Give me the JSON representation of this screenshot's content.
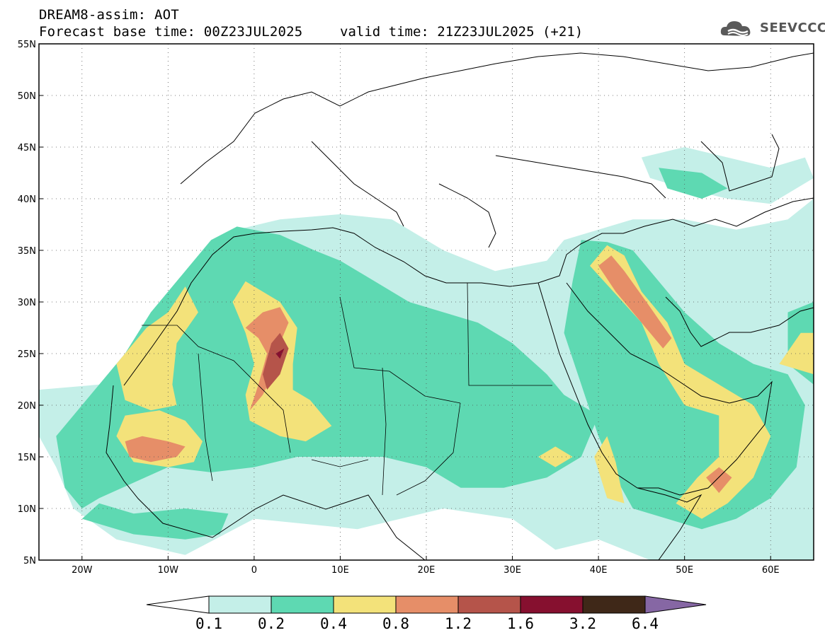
{
  "header": {
    "title": "DREAM8-assim: AOT",
    "base_time": "Forecast base time: 00Z23JUL2025",
    "valid_time": "valid time: 21Z23JUL2025 (+21)"
  },
  "logo": {
    "text": "SEEVCCC",
    "icon": "cloud-logo-icon"
  },
  "map": {
    "lon_range": [
      -25,
      65
    ],
    "lat_range": [
      5,
      55
    ],
    "lon_ticks": [
      {
        "value": -20,
        "label": "20W"
      },
      {
        "value": -10,
        "label": "10W"
      },
      {
        "value": 0,
        "label": "0"
      },
      {
        "value": 10,
        "label": "10E"
      },
      {
        "value": 20,
        "label": "20E"
      },
      {
        "value": 30,
        "label": "30E"
      },
      {
        "value": 40,
        "label": "40E"
      },
      {
        "value": 50,
        "label": "50E"
      },
      {
        "value": 60,
        "label": "60E"
      }
    ],
    "lat_ticks": [
      {
        "value": 5,
        "label": "5N"
      },
      {
        "value": 10,
        "label": "10N"
      },
      {
        "value": 15,
        "label": "15N"
      },
      {
        "value": 20,
        "label": "20N"
      },
      {
        "value": 25,
        "label": "25N"
      },
      {
        "value": 30,
        "label": "30N"
      },
      {
        "value": 35,
        "label": "35N"
      },
      {
        "value": 40,
        "label": "40N"
      },
      {
        "value": 45,
        "label": "45N"
      },
      {
        "value": 50,
        "label": "50N"
      },
      {
        "value": 55,
        "label": "55N"
      }
    ],
    "grid": "dotted",
    "colors": {
      "0.1": "#c4efe8",
      "0.2": "#5ed9b2",
      "0.4": "#f3e27a",
      "0.8": "#e68e68",
      "1.2": "#b5544a",
      "1.6": "#86102f",
      "3.2": "#3f2818",
      "6.4": "#8667a4"
    },
    "layers": [
      {
        "level": "0.1",
        "polys": [
          [
            [
              -25,
              21.5
            ],
            [
              -18,
              22
            ],
            [
              -14,
              26
            ],
            [
              -10,
              30
            ],
            [
              -6,
              35
            ],
            [
              -2,
              37
            ],
            [
              3,
              38
            ],
            [
              10,
              38.5
            ],
            [
              16,
              38
            ],
            [
              22,
              35
            ],
            [
              28,
              33
            ],
            [
              34,
              34
            ],
            [
              36,
              36
            ],
            [
              40,
              37
            ],
            [
              44,
              38
            ],
            [
              50,
              38
            ],
            [
              56,
              37
            ],
            [
              62,
              38
            ],
            [
              65,
              40
            ],
            [
              65,
              5
            ],
            [
              46,
              5
            ],
            [
              40,
              7
            ],
            [
              35,
              6
            ],
            [
              30,
              9
            ],
            [
              22,
              10
            ],
            [
              12,
              8
            ],
            [
              0,
              9
            ],
            [
              -8,
              5.5
            ],
            [
              -16,
              7
            ],
            [
              -21,
              10
            ],
            [
              -23,
              14
            ],
            [
              -25,
              17
            ]
          ],
          [
            [
              45,
              44
            ],
            [
              50,
              45
            ],
            [
              55,
              44
            ],
            [
              60,
              43
            ],
            [
              64,
              44
            ],
            [
              65,
              42
            ],
            [
              60,
              39.5
            ],
            [
              55,
              40
            ],
            [
              50,
              41
            ],
            [
              46,
              42
            ]
          ],
          [
            [
              63,
              37
            ],
            [
              65,
              37
            ],
            [
              65,
              35
            ],
            [
              63,
              35.5
            ]
          ]
        ]
      },
      {
        "level": "0.2",
        "polys": [
          [
            [
              -23,
              17
            ],
            [
              -19,
              21
            ],
            [
              -15,
              25
            ],
            [
              -12,
              29
            ],
            [
              -8,
              33
            ],
            [
              -5,
              36
            ],
            [
              -2,
              37.3
            ],
            [
              3,
              36.5
            ],
            [
              7,
              35
            ],
            [
              10,
              34
            ],
            [
              14,
              32
            ],
            [
              18,
              30
            ],
            [
              22,
              29
            ],
            [
              26,
              28
            ],
            [
              30,
              26
            ],
            [
              34,
              23
            ],
            [
              36,
              21
            ],
            [
              38,
              20
            ],
            [
              40,
              19
            ],
            [
              38,
              15
            ],
            [
              34,
              13
            ],
            [
              29,
              12
            ],
            [
              24,
              12
            ],
            [
              20,
              14
            ],
            [
              15,
              15
            ],
            [
              10,
              15
            ],
            [
              5,
              15
            ],
            [
              0,
              14
            ],
            [
              -5,
              13.5
            ],
            [
              -10,
              14
            ],
            [
              -14,
              12.5
            ],
            [
              -18,
              11
            ],
            [
              -20,
              10
            ],
            [
              -22,
              12
            ]
          ],
          [
            [
              38,
              36
            ],
            [
              41,
              35.8
            ],
            [
              44,
              35
            ],
            [
              47,
              32
            ],
            [
              50,
              29
            ],
            [
              54,
              26
            ],
            [
              58,
              24
            ],
            [
              62,
              23
            ],
            [
              64,
              20
            ],
            [
              63,
              14
            ],
            [
              60,
              11
            ],
            [
              56,
              9
            ],
            [
              52,
              8
            ],
            [
              48,
              9
            ],
            [
              44,
              10
            ],
            [
              42,
              13
            ],
            [
              40,
              17
            ],
            [
              38,
              22
            ],
            [
              36,
              27
            ],
            [
              37,
              32
            ]
          ],
          [
            [
              -20,
              9
            ],
            [
              -14,
              7.5
            ],
            [
              -8,
              7
            ],
            [
              -4,
              7.5
            ],
            [
              -3,
              9.5
            ],
            [
              -8,
              10
            ],
            [
              -14,
              9.5
            ],
            [
              -18,
              10.5
            ]
          ],
          [
            [
              47,
              43
            ],
            [
              52,
              42.5
            ],
            [
              55,
              41
            ],
            [
              52,
              40
            ],
            [
              48,
              41
            ]
          ],
          [
            [
              62,
              29
            ],
            [
              65,
              30
            ],
            [
              65,
              22
            ],
            [
              62,
              24
            ]
          ]
        ]
      },
      {
        "level": "0.4",
        "polys": [
          [
            [
              -16,
              24
            ],
            [
              -12.5,
              27.5
            ],
            [
              -10,
              29
            ],
            [
              -8,
              31.5
            ],
            [
              -6.5,
              29
            ],
            [
              -9,
              26
            ],
            [
              -9.5,
              22
            ],
            [
              -9,
              20
            ],
            [
              -12,
              19.5
            ],
            [
              -15,
              20.5
            ]
          ],
          [
            [
              -16,
              17
            ],
            [
              -15,
              19
            ],
            [
              -11,
              19.5
            ],
            [
              -8,
              18.5
            ],
            [
              -6,
              16.5
            ],
            [
              -7,
              14.5
            ],
            [
              -10,
              14
            ],
            [
              -14,
              14.5
            ]
          ],
          [
            [
              -1,
              32
            ],
            [
              3,
              30
            ],
            [
              5,
              27.5
            ],
            [
              4.5,
              24
            ],
            [
              4.5,
              21.5
            ],
            [
              6.5,
              20.5
            ],
            [
              9,
              18
            ],
            [
              6,
              16.5
            ],
            [
              3,
              17
            ],
            [
              -0.5,
              18.5
            ],
            [
              -1,
              21
            ],
            [
              0,
              24
            ],
            [
              -1,
              27
            ],
            [
              -2.5,
              30
            ]
          ],
          [
            [
              39,
              33.5
            ],
            [
              41,
              35.5
            ],
            [
              43,
              34.5
            ],
            [
              45,
              31
            ],
            [
              48,
              28
            ],
            [
              50,
              24
            ],
            [
              54,
              22
            ],
            [
              58,
              20
            ],
            [
              60,
              17
            ],
            [
              58,
              13
            ],
            [
              55,
              10.5
            ],
            [
              52,
              9
            ],
            [
              49,
              10.5
            ],
            [
              51.5,
              13
            ],
            [
              54,
              15
            ],
            [
              54,
              19
            ],
            [
              50,
              20
            ],
            [
              47,
              24
            ],
            [
              45,
              28
            ]
          ],
          [
            [
              39.5,
              15
            ],
            [
              41,
              17
            ],
            [
              42,
              14.5
            ],
            [
              43,
              10.5
            ],
            [
              41,
              11
            ]
          ],
          [
            [
              33,
              15
            ],
            [
              35,
              16
            ],
            [
              37,
              15
            ],
            [
              35,
              14
            ]
          ],
          [
            [
              61,
              24
            ],
            [
              63.5,
              27
            ],
            [
              65,
              27
            ],
            [
              65,
              23
            ]
          ]
        ]
      },
      {
        "level": "0.8",
        "polys": [
          [
            [
              -1,
              27.5
            ],
            [
              1,
              29
            ],
            [
              3,
              29.5
            ],
            [
              4,
              28
            ],
            [
              3,
              26
            ],
            [
              2.5,
              23.5
            ],
            [
              1,
              21
            ],
            [
              -0.5,
              19.5
            ],
            [
              0.5,
              22
            ],
            [
              1.5,
              25
            ],
            [
              0.5,
              26.5
            ]
          ],
          [
            [
              -15,
              16.5
            ],
            [
              -13,
              17
            ],
            [
              -10,
              16.5
            ],
            [
              -8,
              16
            ],
            [
              -9,
              15
            ],
            [
              -12,
              14.5
            ],
            [
              -14.5,
              15
            ]
          ],
          [
            [
              40,
              33.5
            ],
            [
              41.5,
              34.5
            ],
            [
              43,
              33
            ],
            [
              46,
              29.5
            ],
            [
              48.5,
              26.5
            ],
            [
              47.5,
              25.5
            ],
            [
              45,
              28
            ],
            [
              42,
              31
            ]
          ],
          [
            [
              52.5,
              13
            ],
            [
              54,
              14
            ],
            [
              55.5,
              13
            ],
            [
              54,
              11.5
            ]
          ]
        ]
      },
      {
        "level": "1.2",
        "polys": [
          [
            [
              2,
              26
            ],
            [
              3,
              27
            ],
            [
              4,
              25.5
            ],
            [
              3,
              23
            ],
            [
              1.5,
              21.5
            ],
            [
              1,
              23
            ]
          ]
        ]
      },
      {
        "level": "1.6",
        "polys": [
          [
            [
              2.5,
              25
            ],
            [
              3.5,
              25.5
            ],
            [
              3,
              24.5
            ]
          ]
        ]
      }
    ]
  },
  "colorbar": {
    "labels": [
      "0.1",
      "0.2",
      "0.4",
      "0.8",
      "1.2",
      "1.6",
      "3.2",
      "6.4"
    ],
    "colors": [
      "#ffffff",
      "#c4efe8",
      "#5ed9b2",
      "#f3e27a",
      "#e68e68",
      "#b5544a",
      "#86102f",
      "#3f2818",
      "#8667a4"
    ]
  }
}
